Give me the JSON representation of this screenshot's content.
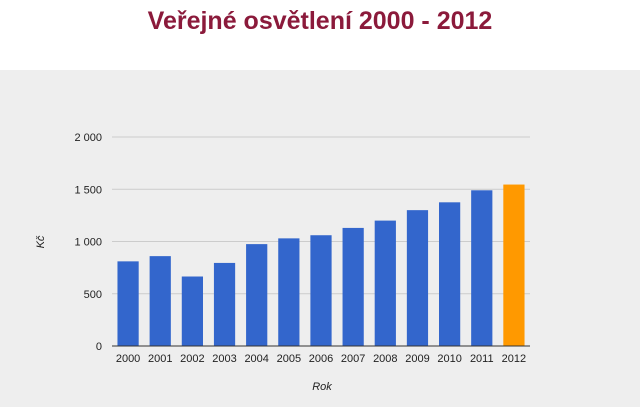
{
  "title": "Veřejné osvětlení 2000 - 2012",
  "colors": {
    "title": "#8b1a3b",
    "panel_background": "#eeeeee",
    "bar_default": "#3366cc",
    "bar_highlight": "#ff9900",
    "gridline": "#cccccc"
  },
  "chart_data": {
    "type": "bar",
    "title": "",
    "xlabel": "Rok",
    "ylabel": "Kč",
    "categories": [
      "2000",
      "2001",
      "2002",
      "2003",
      "2004",
      "2005",
      "2006",
      "2007",
      "2008",
      "2009",
      "2010",
      "2011",
      "2012"
    ],
    "values": [
      810,
      860,
      665,
      795,
      975,
      1030,
      1060,
      1130,
      1200,
      1300,
      1375,
      1490,
      1545
    ],
    "highlight_category": "2012",
    "ylim": [
      0,
      2000
    ],
    "yticks": [
      {
        "value": 0,
        "label": "0"
      },
      {
        "value": 500,
        "label": "500"
      },
      {
        "value": 1000,
        "label": "1 000"
      },
      {
        "value": 1500,
        "label": "1 500"
      },
      {
        "value": 2000,
        "label": "2 000"
      }
    ],
    "grid": true,
    "legend": "none"
  }
}
